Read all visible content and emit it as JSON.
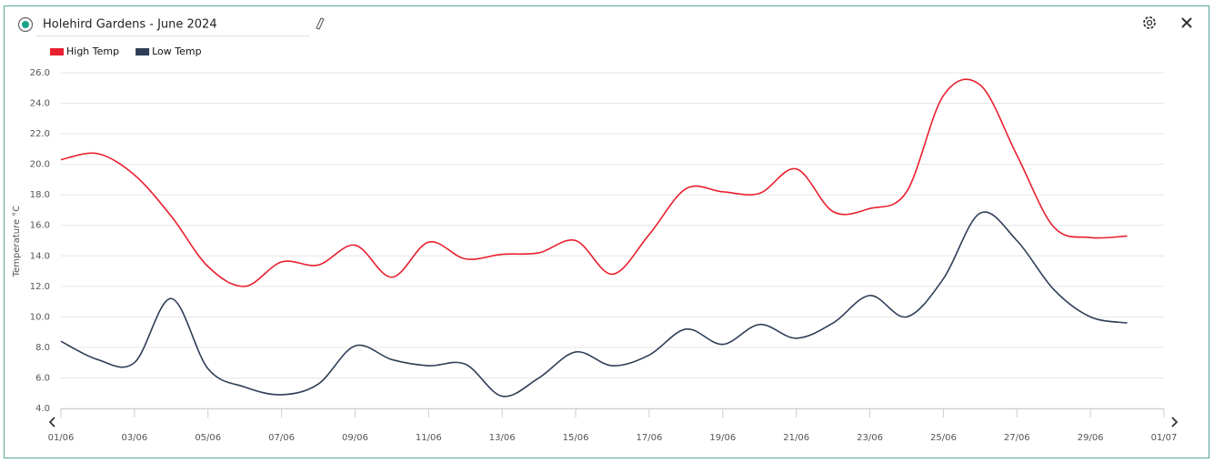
{
  "chart_data": {
    "type": "line",
    "title": "Holehird Gardens - June 2024",
    "ylabel": "Temperature °C",
    "x": [
      0,
      1,
      2,
      3,
      4,
      5,
      6,
      7,
      8,
      9,
      10,
      11,
      12,
      13,
      14,
      15,
      16,
      17,
      18,
      19,
      20,
      21,
      22,
      23,
      24,
      25,
      26,
      27,
      28,
      29
    ],
    "xlim": [
      0,
      30
    ],
    "xticks": [
      {
        "value": 0,
        "label": "01/06"
      },
      {
        "value": 2,
        "label": "03/06"
      },
      {
        "value": 4,
        "label": "05/06"
      },
      {
        "value": 6,
        "label": "07/06"
      },
      {
        "value": 8,
        "label": "09/06"
      },
      {
        "value": 10,
        "label": "11/06"
      },
      {
        "value": 12,
        "label": "13/06"
      },
      {
        "value": 14,
        "label": "15/06"
      },
      {
        "value": 16,
        "label": "17/06"
      },
      {
        "value": 18,
        "label": "19/06"
      },
      {
        "value": 20,
        "label": "21/06"
      },
      {
        "value": 22,
        "label": "23/06"
      },
      {
        "value": 24,
        "label": "25/06"
      },
      {
        "value": 26,
        "label": "27/06"
      },
      {
        "value": 28,
        "label": "29/06"
      },
      {
        "value": 30,
        "label": "01/07"
      }
    ],
    "ylim": [
      4,
      26
    ],
    "yticks": [
      {
        "value": 4,
        "label": "4.0"
      },
      {
        "value": 6,
        "label": "6.0"
      },
      {
        "value": 8,
        "label": "8.0"
      },
      {
        "value": 10,
        "label": "10.0"
      },
      {
        "value": 12,
        "label": "12.0"
      },
      {
        "value": 14,
        "label": "14.0"
      },
      {
        "value": 16,
        "label": "16.0"
      },
      {
        "value": 18,
        "label": "18.0"
      },
      {
        "value": 20,
        "label": "20.0"
      },
      {
        "value": 22,
        "label": "22.0"
      },
      {
        "value": 24,
        "label": "24.0"
      },
      {
        "value": 26,
        "label": "26.0"
      }
    ],
    "grid": true,
    "legend": "top-left",
    "series": [
      {
        "name": "High Temp",
        "color": "#e8202f",
        "values": [
          20.3,
          20.7,
          19.3,
          16.6,
          13.3,
          12.0,
          13.6,
          13.4,
          14.7,
          12.6,
          14.9,
          13.8,
          14.1,
          14.2,
          15.0,
          12.8,
          15.4,
          18.4,
          18.2,
          18.1,
          19.7,
          16.9,
          17.1,
          18.2,
          24.5,
          25.2,
          20.6,
          15.9,
          15.2,
          15.3
        ]
      },
      {
        "name": "Low Temp",
        "color": "#2e3e55",
        "values": [
          8.4,
          7.2,
          7.0,
          11.2,
          6.6,
          5.4,
          4.9,
          5.6,
          8.1,
          7.2,
          6.8,
          6.9,
          4.8,
          6.0,
          7.7,
          6.8,
          7.5,
          9.2,
          8.2,
          9.5,
          8.6,
          9.6,
          11.4,
          10.0,
          12.5,
          16.8,
          15.0,
          11.8,
          10.0,
          9.6
        ]
      }
    ]
  }
}
